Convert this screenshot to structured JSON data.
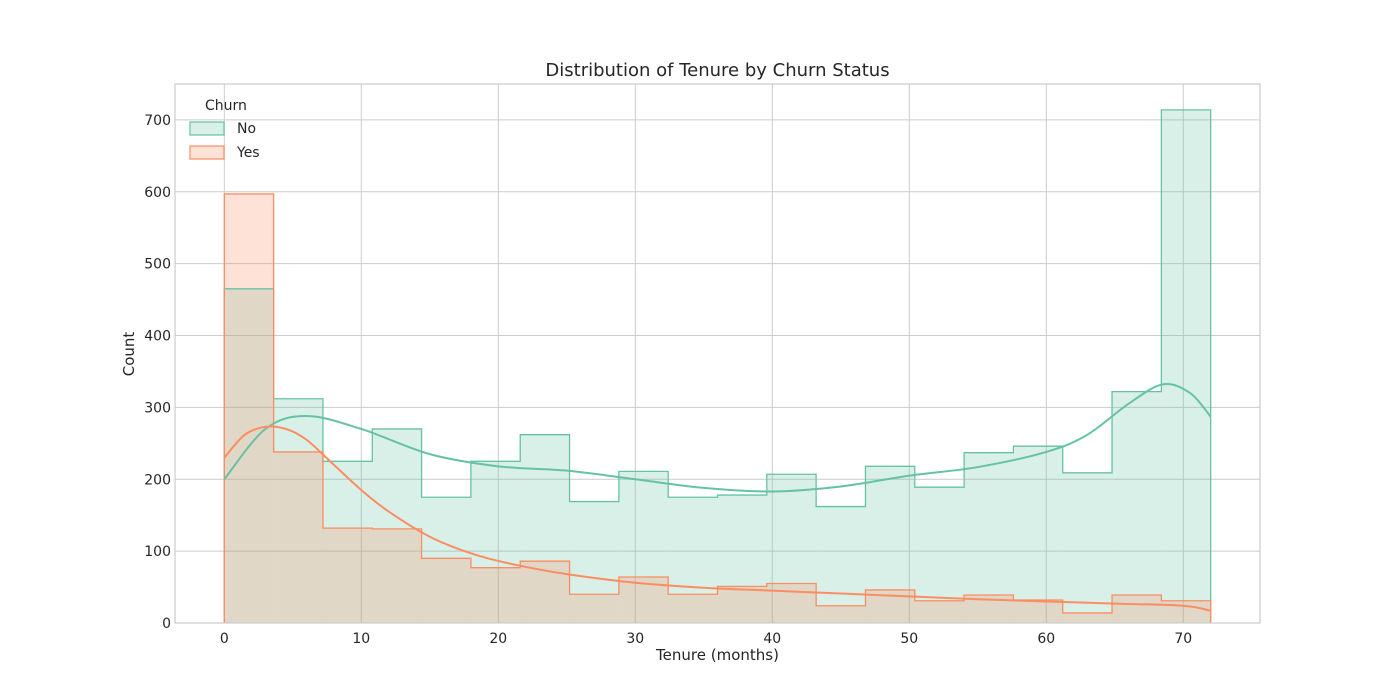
{
  "chart_data": {
    "type": "histogram",
    "title": "Distribution of Tenure by Churn Status",
    "xlabel": "Tenure (months)",
    "ylabel": "Count",
    "xlim": [
      -3.6,
      75.6
    ],
    "ylim": [
      0,
      750
    ],
    "xticks": [
      0,
      10,
      20,
      30,
      40,
      50,
      60,
      70
    ],
    "yticks": [
      0,
      100,
      200,
      300,
      400,
      500,
      600,
      700
    ],
    "grid": true,
    "legend": {
      "title": "Churn",
      "position": "top-left"
    },
    "bin_edges": [
      0,
      3.6,
      7.2,
      10.8,
      14.4,
      18.0,
      21.6,
      25.2,
      28.8,
      32.4,
      36.0,
      39.6,
      43.2,
      46.8,
      50.4,
      54.0,
      57.6,
      61.2,
      64.8,
      68.4,
      72.0
    ],
    "series": [
      {
        "name": "No",
        "color": "#66c2a5",
        "counts": [
          465,
          312,
          225,
          270,
          175,
          225,
          262,
          169,
          211,
          175,
          178,
          207,
          162,
          218,
          189,
          237,
          246,
          209,
          322,
          714
        ],
        "kde_x": [
          0,
          3,
          6,
          10,
          15,
          20,
          25,
          30,
          35,
          40,
          45,
          50,
          55,
          60,
          63,
          66,
          68.5,
          70.5,
          72
        ],
        "kde_y": [
          200,
          270,
          288,
          270,
          235,
          218,
          212,
          200,
          188,
          183,
          190,
          205,
          217,
          238,
          262,
          305,
          332,
          320,
          287
        ]
      },
      {
        "name": "Yes",
        "color": "#fc8d62",
        "counts": [
          597,
          238,
          132,
          131,
          90,
          77,
          86,
          40,
          64,
          40,
          51,
          55,
          24,
          46,
          31,
          39,
          32,
          14,
          39,
          31
        ],
        "kde_x": [
          0,
          1.5,
          3,
          4.5,
          6,
          8,
          10,
          12,
          15,
          18,
          21,
          25,
          30,
          35,
          40,
          45,
          50,
          55,
          60,
          65,
          70,
          72
        ],
        "kde_y": [
          230,
          262,
          273,
          270,
          255,
          220,
          185,
          155,
          120,
          97,
          82,
          68,
          56,
          49,
          45,
          41,
          37,
          33,
          30,
          27,
          24,
          17
        ]
      }
    ]
  }
}
